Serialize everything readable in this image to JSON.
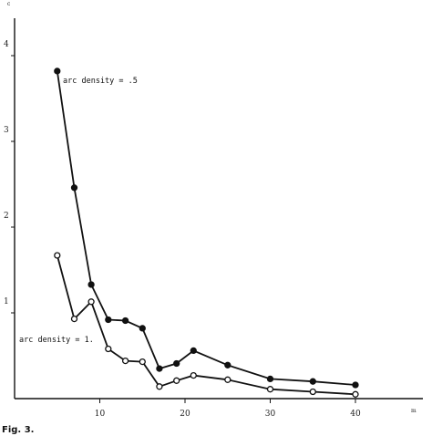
{
  "figure_caption": "Fig. 3.",
  "chart_data": {
    "type": "line",
    "xlabel": "m",
    "ylabel": "c",
    "xlim": [
      0,
      45
    ],
    "ylim": [
      0,
      4.4
    ],
    "x_ticks": [
      10,
      20,
      30,
      40
    ],
    "y_ticks": [
      1,
      2,
      3,
      4
    ],
    "x_tick_labels": [
      "10",
      "20",
      "30",
      "40"
    ],
    "y_tick_labels": [
      "1",
      "2",
      "3",
      "4"
    ],
    "grid": false,
    "series": [
      {
        "name": "arc density = .5",
        "marker": "filled-circle",
        "x": [
          5,
          7,
          9,
          11,
          13,
          15,
          17,
          19,
          21,
          25,
          30,
          35,
          40
        ],
        "y": [
          3.82,
          2.46,
          1.33,
          0.92,
          0.91,
          0.82,
          0.35,
          0.41,
          0.56,
          0.39,
          0.23,
          0.2,
          0.16
        ]
      },
      {
        "name": "arc density = 1.",
        "marker": "open-circle",
        "x": [
          5,
          7,
          9,
          11,
          13,
          15,
          17,
          19,
          21,
          25,
          30,
          35,
          40
        ],
        "y": [
          1.67,
          0.93,
          1.13,
          0.58,
          0.44,
          0.43,
          0.14,
          0.21,
          0.27,
          0.22,
          0.11,
          0.08,
          0.05
        ]
      }
    ]
  }
}
